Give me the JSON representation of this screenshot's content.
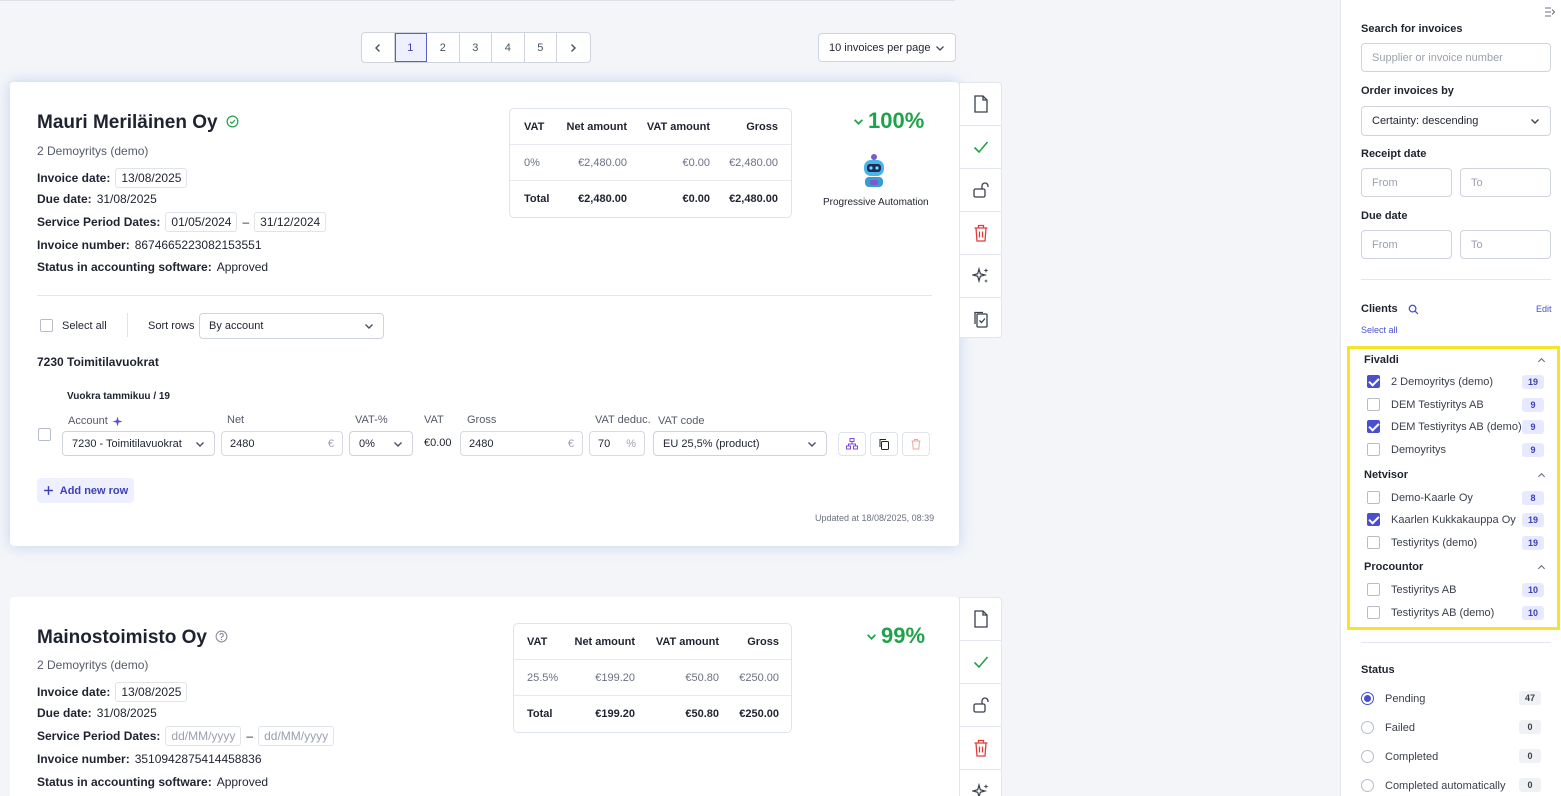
{
  "pagination": {
    "pages": [
      "1",
      "2",
      "3",
      "4",
      "5"
    ],
    "active": "1"
  },
  "per_page": "10 invoices per page",
  "invoices": [
    {
      "supplier": "Mauri Meriläinen Oy",
      "client": "2 Demoyritys (demo)",
      "invoice_date_label": "Invoice date:",
      "invoice_date": "13/08/2025",
      "due_date_label": "Due date:",
      "due_date": "31/08/2025",
      "service_period_label": "Service Period Dates:",
      "service_from": "01/05/2024",
      "service_to": "31/12/2024",
      "dash": "–",
      "invoice_number_label": "Invoice number:",
      "invoice_number": "8674665223082153551",
      "status_label": "Status in accounting software:",
      "status": "Approved",
      "vat_headers": [
        "VAT",
        "Net amount",
        "VAT amount",
        "Gross"
      ],
      "vat_rows": [
        [
          "0%",
          "€2,480.00",
          "€0.00",
          "€2,480.00"
        ]
      ],
      "vat_total": [
        "Total",
        "€2,480.00",
        "€0.00",
        "€2,480.00"
      ],
      "certainty": "100%",
      "automation_label": "Progressive Automation",
      "select_all": "Select all",
      "sort_rows_label": "Sort rows",
      "sort_rows_value": "By account",
      "account_group": "7230 Toimitilavuokrat",
      "row_title": "Vuokra tammikuu / 19",
      "row_labels": {
        "account": "Account",
        "net": "Net",
        "vat_pct": "VAT-%",
        "vat": "VAT",
        "gross": "Gross",
        "vat_deduc": "VAT deduc.",
        "vat_code": "VAT code"
      },
      "row": {
        "account": "7230 - Toimitilavuokrat",
        "net": "2480",
        "vat_pct": "0%",
        "vat": "€0.00",
        "gross": "2480",
        "vat_deduc": "70",
        "vat_code": "EU 25,5% (product)",
        "currency": "€",
        "percent": "%"
      },
      "add_row": "Add new row",
      "updated": "Updated at 18/08/2025, 08:39"
    },
    {
      "supplier": "Mainostoimisto Oy",
      "client": "2 Demoyritys (demo)",
      "invoice_date_label": "Invoice date:",
      "invoice_date": "13/08/2025",
      "due_date_label": "Due date:",
      "due_date": "31/08/2025",
      "service_period_label": "Service Period Dates:",
      "service_from": "dd/MM/yyyy",
      "service_to": "dd/MM/yyyy",
      "dash": "–",
      "invoice_number_label": "Invoice number:",
      "invoice_number": "3510942875414458836",
      "status_label": "Status in accounting software:",
      "status": "Approved",
      "vat_headers": [
        "VAT",
        "Net amount",
        "VAT amount",
        "Gross"
      ],
      "vat_rows": [
        [
          "25.5%",
          "€199.20",
          "€50.80",
          "€250.00"
        ]
      ],
      "vat_total": [
        "Total",
        "€199.20",
        "€50.80",
        "€250.00"
      ],
      "certainty": "99%"
    }
  ],
  "sidebar": {
    "search_title": "Search for invoices",
    "search_placeholder": "Supplier or invoice number",
    "order_title": "Order invoices by",
    "order_value": "Certainty: descending",
    "receipt_title": "Receipt date",
    "due_title": "Due date",
    "from_placeholder": "From",
    "to_placeholder": "To",
    "clients_title": "Clients",
    "edit": "Edit",
    "select_all": "Select all",
    "groups": [
      {
        "name": "Fivaldi",
        "items": [
          {
            "label": "2 Demoyritys (demo)",
            "count": "19",
            "checked": true
          },
          {
            "label": "DEM Testiyritys AB",
            "count": "9",
            "checked": false
          },
          {
            "label": "DEM Testiyritys AB (demo)",
            "count": "9",
            "checked": true
          },
          {
            "label": "Demoyritys",
            "count": "9",
            "checked": false
          }
        ]
      },
      {
        "name": "Netvisor",
        "items": [
          {
            "label": "Demo-Kaarle Oy",
            "count": "8",
            "checked": false
          },
          {
            "label": "Kaarlen Kukkakauppa Oy",
            "count": "19",
            "checked": true
          },
          {
            "label": "Testiyritys (demo)",
            "count": "19",
            "checked": false
          }
        ]
      },
      {
        "name": "Procountor",
        "items": [
          {
            "label": "Testiyritys AB",
            "count": "10",
            "checked": false
          },
          {
            "label": "Testiyritys AB (demo)",
            "count": "10",
            "checked": false
          }
        ]
      }
    ],
    "status_title": "Status",
    "statuses": [
      {
        "label": "Pending",
        "count": "47",
        "selected": true
      },
      {
        "label": "Failed",
        "count": "0",
        "selected": false
      },
      {
        "label": "Completed",
        "count": "0",
        "selected": false
      },
      {
        "label": "Completed automatically",
        "count": "0",
        "selected": false
      }
    ]
  }
}
